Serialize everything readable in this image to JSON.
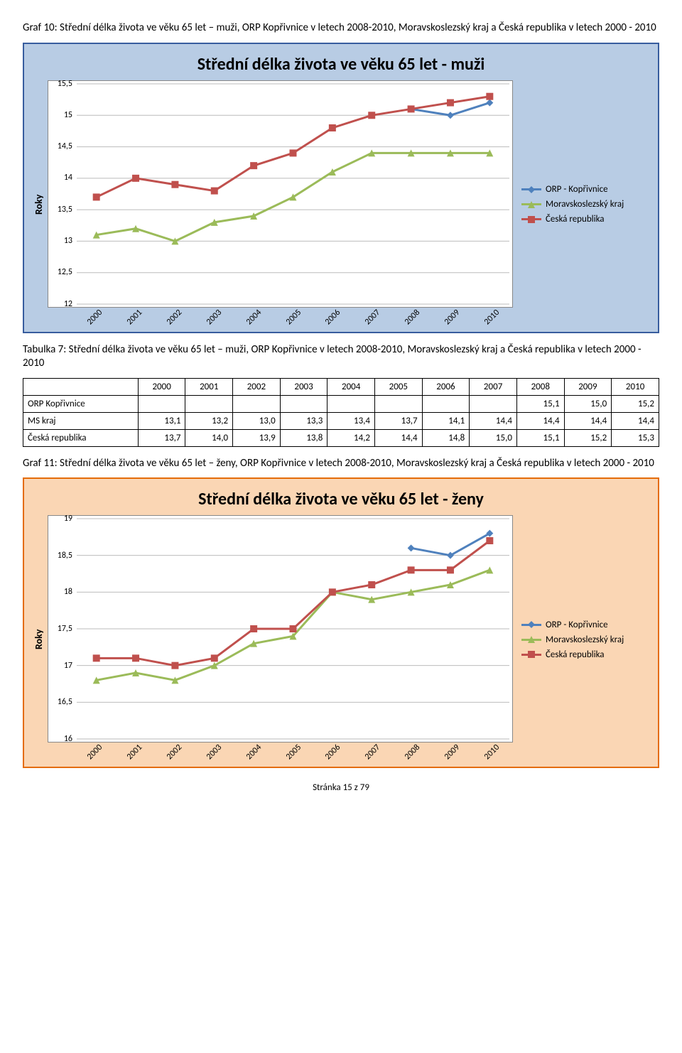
{
  "graf10_caption": "Graf 10: Střední délka života ve věku 65 let – muži, ORP Kopřivnice v letech 2008-2010, Moravskoslezský kraj a Česká republika v letech 2000 - 2010",
  "chart1": {
    "title": "Střední délka života ve věku 65 let - muži",
    "y_label": "Roky",
    "categories": [
      "2000",
      "2001",
      "2002",
      "2003",
      "2004",
      "2005",
      "2006",
      "2007",
      "2008",
      "2009",
      "2010"
    ],
    "ylim": [
      12,
      15.5
    ],
    "ytick_step": 0.5,
    "y_tick_labels": [
      "12",
      "12,5",
      "13",
      "13,5",
      "14",
      "14,5",
      "15",
      "15,5"
    ],
    "background_color": "#b8cce4",
    "border_color": "#385d9e",
    "plot_bg": "#ffffff",
    "grid_color": "#bfbfbf",
    "series": [
      {
        "name": "ORP - Kopřivnice",
        "color": "#4f81bd",
        "marker": "diamond",
        "data": [
          null,
          null,
          null,
          null,
          null,
          null,
          null,
          null,
          15.1,
          15.0,
          15.2
        ]
      },
      {
        "name": "Moravskoslezský kraj",
        "color": "#9bbb59",
        "marker": "triangle",
        "data": [
          13.1,
          13.2,
          13.0,
          13.3,
          13.4,
          13.7,
          14.1,
          14.4,
          14.4,
          14.4,
          14.4
        ]
      },
      {
        "name": "Česká republika",
        "color": "#c0504d",
        "marker": "square",
        "data": [
          13.7,
          14.0,
          13.9,
          13.8,
          14.2,
          14.4,
          14.8,
          15.0,
          15.1,
          15.2,
          15.3
        ]
      }
    ]
  },
  "tab7_caption": "Tabulka 7: Střední délka života ve věku 65 let – muži, ORP Kopřivnice v letech 2008-2010, Moravskoslezský kraj a Česká republika v letech 2000 - 2010",
  "table7": {
    "columns": [
      "",
      "2000",
      "2001",
      "2002",
      "2003",
      "2004",
      "2005",
      "2006",
      "2007",
      "2008",
      "2009",
      "2010"
    ],
    "rows": [
      [
        "ORP Kopřivnice",
        "",
        "",
        "",
        "",
        "",
        "",
        "",
        "",
        "15,1",
        "15,0",
        "15,2"
      ],
      [
        "MS kraj",
        "13,1",
        "13,2",
        "13,0",
        "13,3",
        "13,4",
        "13,7",
        "14,1",
        "14,4",
        "14,4",
        "14,4",
        "14,4"
      ],
      [
        "Česká republika",
        "13,7",
        "14,0",
        "13,9",
        "13,8",
        "14,2",
        "14,4",
        "14,8",
        "15,0",
        "15,1",
        "15,2",
        "15,3"
      ]
    ]
  },
  "graf11_caption": "Graf 11: Střední délka života ve věku 65 let – ženy, ORP Kopřivnice v letech 2008-2010, Moravskoslezský kraj a Česká republika v letech 2000 - 2010",
  "chart2": {
    "title": "Střední délka života ve věku 65 let - ženy",
    "y_label": "Roky",
    "categories": [
      "2000",
      "2001",
      "2002",
      "2003",
      "2004",
      "2005",
      "2006",
      "2007",
      "2008",
      "2009",
      "2010"
    ],
    "ylim": [
      16,
      19
    ],
    "ytick_step": 0.5,
    "y_tick_labels": [
      "16",
      "16,5",
      "17",
      "17,5",
      "18",
      "18,5",
      "19"
    ],
    "background_color": "#fad6b4",
    "border_color": "#e46c0a",
    "plot_bg": "#ffffff",
    "grid_color": "#bfbfbf",
    "series": [
      {
        "name": "ORP - Kopřivnice",
        "color": "#4f81bd",
        "marker": "diamond",
        "data": [
          null,
          null,
          null,
          null,
          null,
          null,
          null,
          null,
          18.6,
          18.5,
          18.8
        ]
      },
      {
        "name": "Moravskoslezský kraj",
        "color": "#9bbb59",
        "marker": "triangle",
        "data": [
          16.8,
          16.9,
          16.8,
          17.0,
          17.3,
          17.4,
          18.0,
          17.9,
          18.0,
          18.1,
          18.3
        ]
      },
      {
        "name": "Česká republika",
        "color": "#c0504d",
        "marker": "square",
        "data": [
          17.1,
          17.1,
          17.0,
          17.1,
          17.5,
          17.5,
          18.0,
          18.1,
          18.3,
          18.3,
          18.7
        ]
      }
    ]
  },
  "footer_text": "Stránka 15 z 79"
}
